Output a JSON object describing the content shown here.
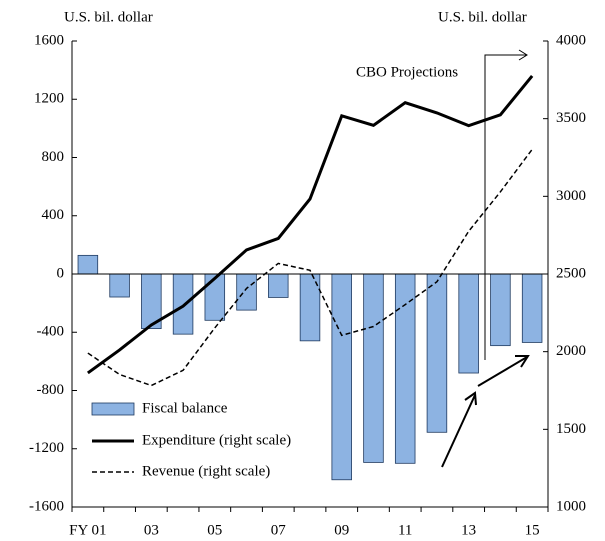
{
  "chart_data": {
    "type": "combo",
    "categories": [
      "FY 01",
      null,
      "03",
      null,
      "05",
      null,
      "07",
      null,
      "09",
      null,
      "11",
      null,
      "13",
      null,
      "15"
    ],
    "series": [
      {
        "name": "Fiscal balance",
        "type": "bar",
        "color": "#8db3e2",
        "values": [
          128,
          -158,
          -375,
          -413,
          -318,
          -248,
          -161,
          -459,
          -1413,
          -1294,
          -1300,
          -1087,
          -680,
          -492,
          -470
        ]
      },
      {
        "name": "Expenditure (right scale)",
        "type": "line",
        "axis": "y2",
        "color": "#000000",
        "dashed": false,
        "values": [
          1863,
          2011,
          2172,
          2293,
          2472,
          2655,
          2729,
          2983,
          3518,
          3457,
          3603,
          3537,
          3455,
          3525,
          3775
        ]
      },
      {
        "name": "Revenue (right scale)",
        "type": "line",
        "axis": "y2",
        "color": "#000000",
        "dashed": true,
        "values": [
          1991,
          1853,
          1782,
          1880,
          2153,
          2407,
          2568,
          2524,
          2105,
          2162,
          2303,
          2450,
          2775,
          3029,
          3302
        ]
      }
    ],
    "ylim": [
      -1600,
      1600
    ],
    "yticks": [
      -1600,
      -1200,
      -800,
      -400,
      0,
      400,
      800,
      1200,
      1600
    ],
    "y2lim": [
      1000,
      4000
    ],
    "y2ticks": [
      1000,
      1500,
      2000,
      2500,
      3000,
      3500,
      4000
    ],
    "y_label": "U.S. bil. dollar",
    "y2_label": "U.S. bil. dollar",
    "annotation": "CBO Projections",
    "legend": "lower left"
  }
}
